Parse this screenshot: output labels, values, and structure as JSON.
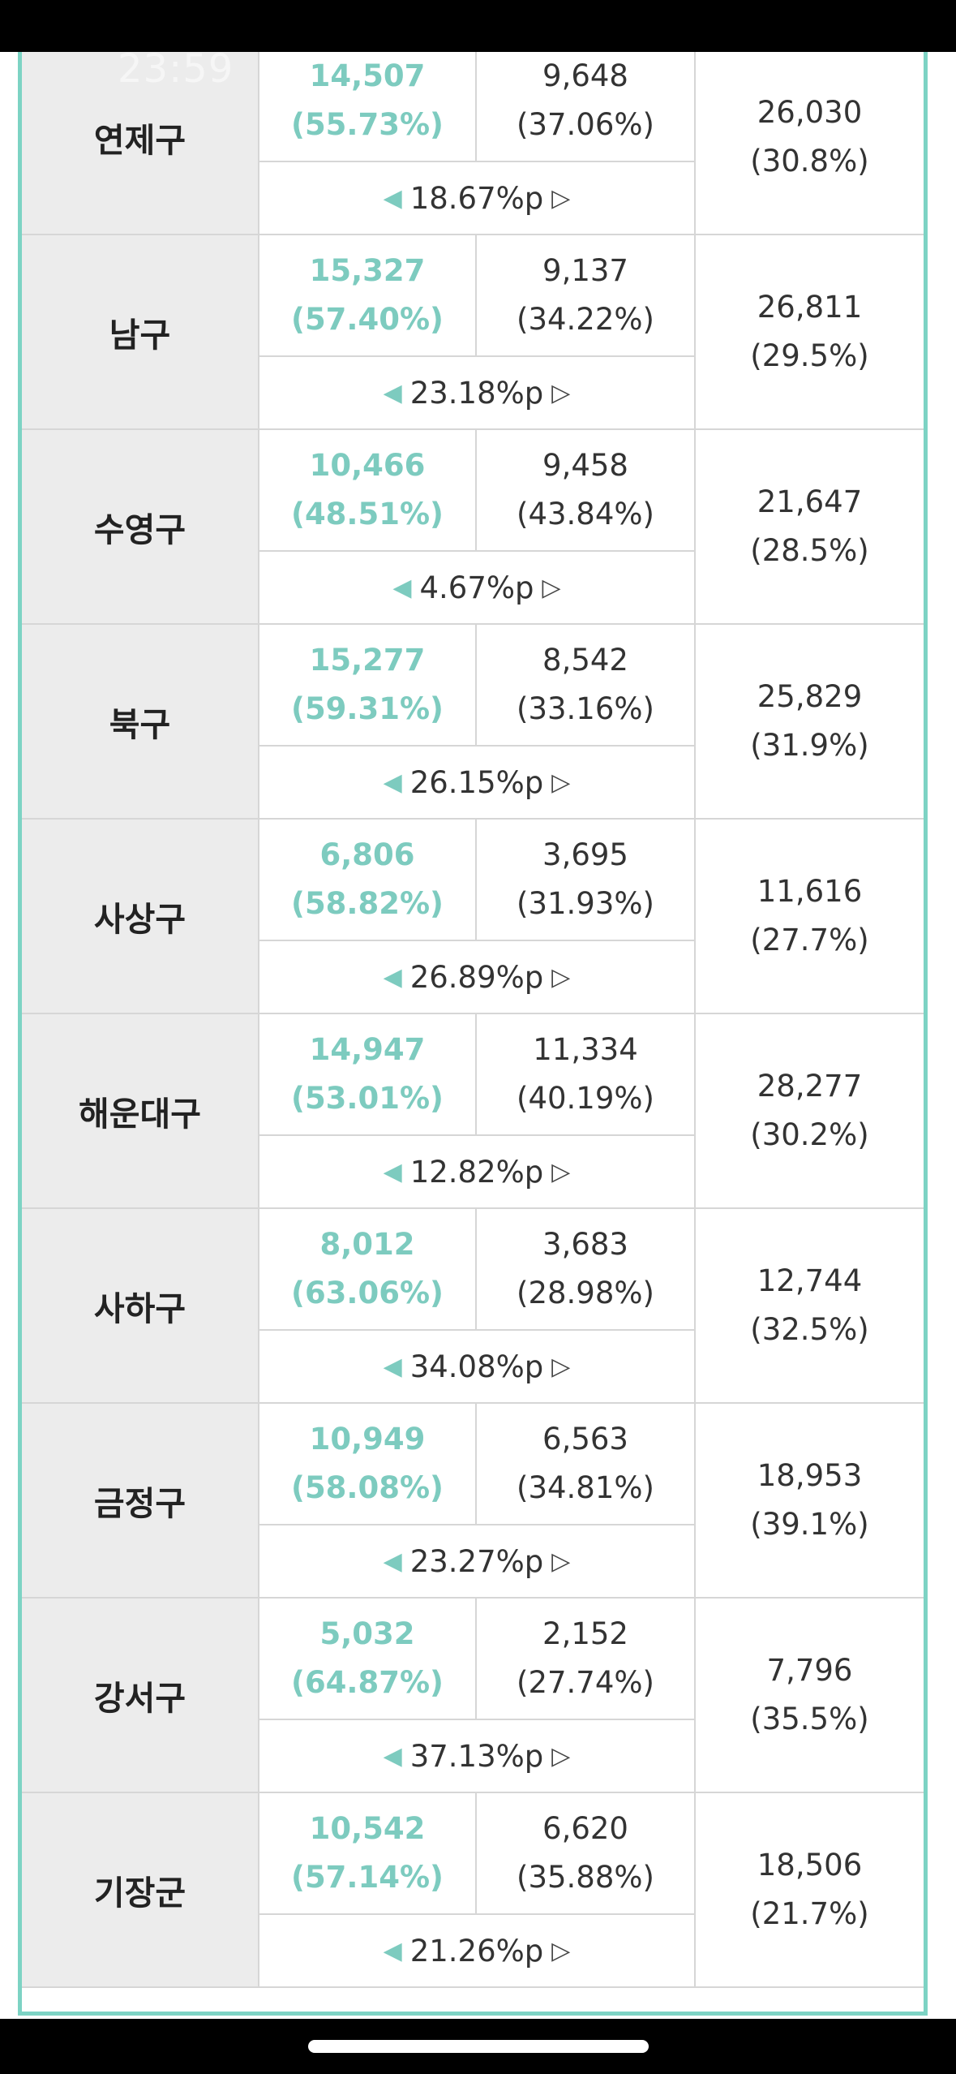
{
  "status_bar": {
    "time": "23:59"
  },
  "rows": [
    {
      "district": "연제구",
      "cand_a_votes": "14,507",
      "cand_a_pct": "(55.73%)",
      "cand_b_votes": "9,648",
      "cand_b_pct": "(37.06%)",
      "gap": "18.67%p",
      "total_votes": "26,030",
      "total_pct": "(30.8%)"
    },
    {
      "district": "남구",
      "cand_a_votes": "15,327",
      "cand_a_pct": "(57.40%)",
      "cand_b_votes": "9,137",
      "cand_b_pct": "(34.22%)",
      "gap": "23.18%p",
      "total_votes": "26,811",
      "total_pct": "(29.5%)"
    },
    {
      "district": "수영구",
      "cand_a_votes": "10,466",
      "cand_a_pct": "(48.51%)",
      "cand_b_votes": "9,458",
      "cand_b_pct": "(43.84%)",
      "gap": "4.67%p",
      "total_votes": "21,647",
      "total_pct": "(28.5%)"
    },
    {
      "district": "북구",
      "cand_a_votes": "15,277",
      "cand_a_pct": "(59.31%)",
      "cand_b_votes": "8,542",
      "cand_b_pct": "(33.16%)",
      "gap": "26.15%p",
      "total_votes": "25,829",
      "total_pct": "(31.9%)"
    },
    {
      "district": "사상구",
      "cand_a_votes": "6,806",
      "cand_a_pct": "(58.82%)",
      "cand_b_votes": "3,695",
      "cand_b_pct": "(31.93%)",
      "gap": "26.89%p",
      "total_votes": "11,616",
      "total_pct": "(27.7%)"
    },
    {
      "district": "해운대구",
      "cand_a_votes": "14,947",
      "cand_a_pct": "(53.01%)",
      "cand_b_votes": "11,334",
      "cand_b_pct": "(40.19%)",
      "gap": "12.82%p",
      "total_votes": "28,277",
      "total_pct": "(30.2%)"
    },
    {
      "district": "사하구",
      "cand_a_votes": "8,012",
      "cand_a_pct": "(63.06%)",
      "cand_b_votes": "3,683",
      "cand_b_pct": "(28.98%)",
      "gap": "34.08%p",
      "total_votes": "12,744",
      "total_pct": "(32.5%)"
    },
    {
      "district": "금정구",
      "cand_a_votes": "10,949",
      "cand_a_pct": "(58.08%)",
      "cand_b_votes": "6,563",
      "cand_b_pct": "(34.81%)",
      "gap": "23.27%p",
      "total_votes": "18,953",
      "total_pct": "(39.1%)"
    },
    {
      "district": "강서구",
      "cand_a_votes": "5,032",
      "cand_a_pct": "(64.87%)",
      "cand_b_votes": "2,152",
      "cand_b_pct": "(27.74%)",
      "gap": "37.13%p",
      "total_votes": "7,796",
      "total_pct": "(35.5%)"
    },
    {
      "district": "기장군",
      "cand_a_votes": "10,542",
      "cand_a_pct": "(57.14%)",
      "cand_b_votes": "6,620",
      "cand_b_pct": "(35.88%)",
      "gap": "21.26%p",
      "total_votes": "18,506",
      "total_pct": "(21.7%)"
    }
  ],
  "icons": {
    "left_arrow": "◀",
    "right_arrow": "▷"
  },
  "colors": {
    "accent": "#7dcbbf",
    "border": "#7dd3c4",
    "district_bg": "#ececec"
  }
}
